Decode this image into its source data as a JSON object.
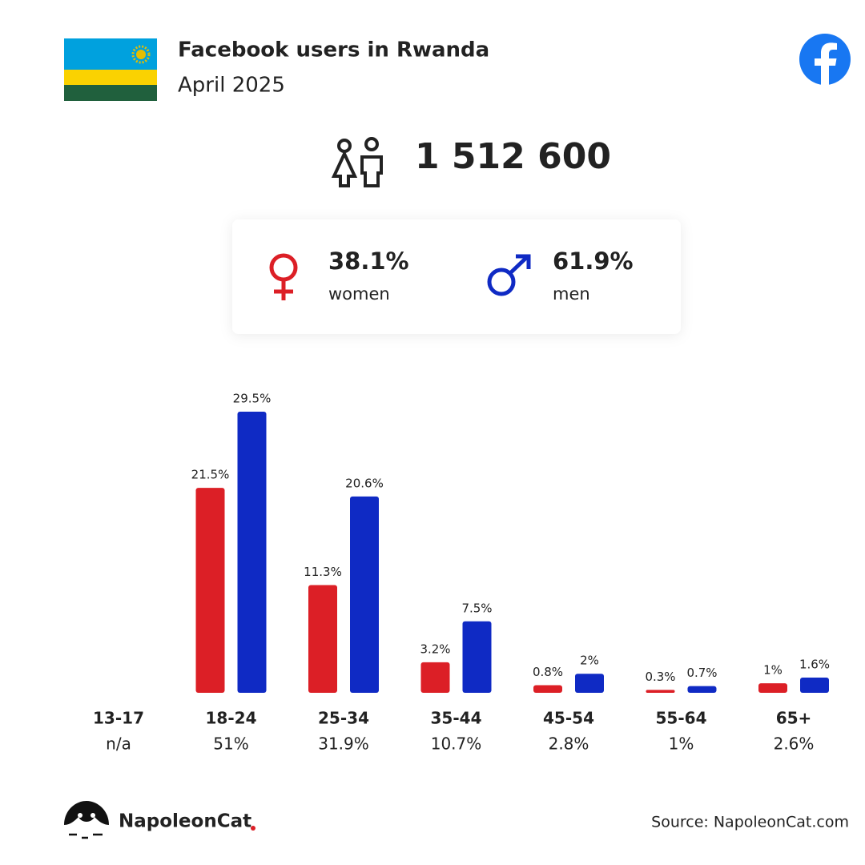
{
  "header": {
    "title": "Facebook users in Rwanda",
    "subtitle": "April 2025"
  },
  "summary": {
    "total_users": 1512600,
    "total_users_label": "1 512 600"
  },
  "chart_data": {
    "type": "bar",
    "categories": [
      "13-17",
      "18-24",
      "25-34",
      "35-44",
      "45-54",
      "55-64",
      "65+"
    ],
    "totals": [
      null,
      51,
      31.9,
      10.7,
      2.8,
      1,
      2.6
    ],
    "totals_labels": [
      "n/a",
      "51%",
      "31.9%",
      "10.7%",
      "2.8%",
      "1%",
      "2.6%"
    ],
    "series": [
      {
        "name": "women",
        "color": "#dc1f26",
        "share": 38.1,
        "share_label": "38.1%",
        "values": [
          null,
          21.5,
          11.3,
          3.2,
          0.8,
          0.3,
          1
        ],
        "value_labels": [
          null,
          "21.5%",
          "11.3%",
          "3.2%",
          "0.8%",
          "0.3%",
          "1%"
        ]
      },
      {
        "name": "men",
        "color": "#0f2ac4",
        "share": 61.9,
        "share_label": "61.9%",
        "values": [
          null,
          29.5,
          20.6,
          7.5,
          2,
          0.7,
          1.6
        ],
        "value_labels": [
          null,
          "29.5%",
          "20.6%",
          "7.5%",
          "2%",
          "0.7%",
          "1.6%"
        ]
      }
    ],
    "ylim": [
      0,
      30
    ]
  },
  "footer": {
    "brand": "NapoleonCat",
    "source": "Source: NapoleonCat.com"
  }
}
